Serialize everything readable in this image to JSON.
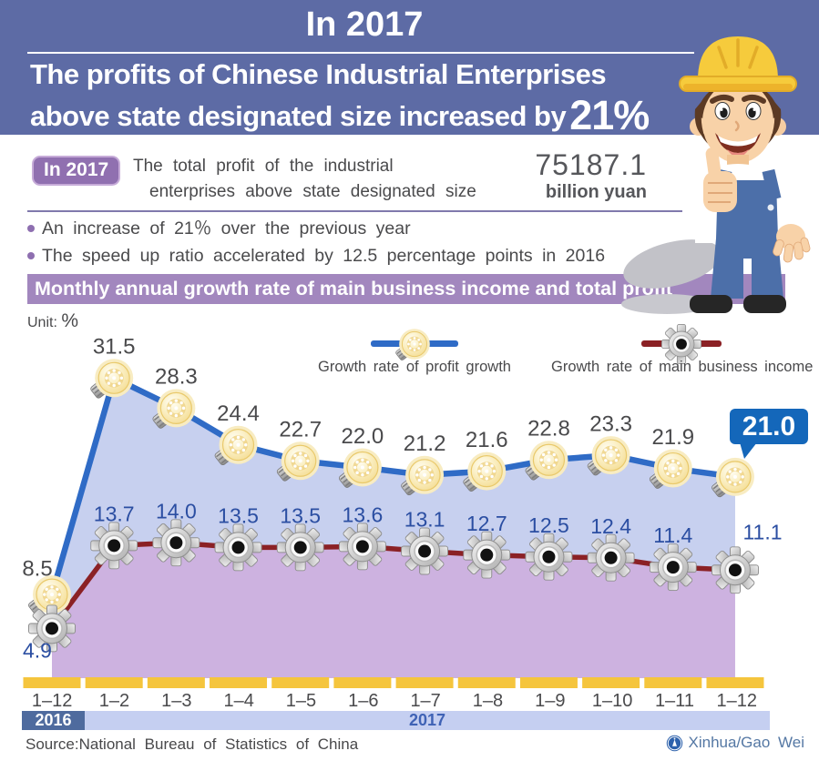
{
  "header": {
    "title": "In 2017",
    "line1": "The profits of Chinese Industrial Enterprises",
    "line2": "above state designated size increased by",
    "highlight": "21%"
  },
  "summary": {
    "badge": "In 2017",
    "text_line1": "The total profit of the industrial",
    "text_line2": "enterprises above state designated size",
    "amount": "75187.1",
    "amount_unit": "billion yuan",
    "bullets": [
      "An increase of 21％ over the previous year",
      "The speed up ratio accelerated by 12.5 percentage points in 2016"
    ]
  },
  "chart_header": {
    "banner": "Monthly annual growth rate of main business income and total profit",
    "unit_label": "Unit:",
    "unit_symbol": "%"
  },
  "legend": {
    "profit": "Growth rate of profit growth",
    "income": "Growth rate of main business income"
  },
  "chart_data": {
    "type": "line",
    "categories": [
      "1–12",
      "1–2",
      "1–3",
      "1–4",
      "1–5",
      "1–6",
      "1–7",
      "1–8",
      "1–9",
      "1–10",
      "1–11",
      "1–12"
    ],
    "series": [
      {
        "name": "Growth rate of profit growth",
        "marker": "bulb-icon",
        "color": "#2F6BC6",
        "values": [
          8.5,
          31.5,
          28.3,
          24.4,
          22.7,
          22.0,
          21.2,
          21.6,
          22.8,
          23.3,
          21.9,
          21.0
        ]
      },
      {
        "name": "Growth rate of main business income",
        "marker": "gear-icon",
        "color": "#8B2125",
        "values": [
          4.9,
          13.7,
          14.0,
          13.5,
          13.5,
          13.6,
          13.1,
          12.7,
          12.5,
          12.4,
          11.4,
          11.1
        ]
      }
    ],
    "highlight_value": "21.0",
    "era": [
      {
        "label": "2016",
        "span": 1
      },
      {
        "label": "2017",
        "span": 11
      }
    ],
    "ylabel": "%",
    "ylim": [
      0,
      35
    ],
    "grid": false,
    "legend_position": "top"
  },
  "footer": {
    "source": "Source:National Bureau of Statistics of China",
    "credit": "Xinhua/Gao Wei"
  },
  "colors": {
    "header_bg": "#5D6BA5",
    "badge_bg": "#9070B0",
    "banner_bg": "#A287BE",
    "profit_line": "#2F6BC6",
    "income_line": "#8B2125",
    "profit_fill": "#C7D0EF",
    "income_fill": "#CDB2E0",
    "axis_yellow": "#F5C53D",
    "era2016_bg": "#4F6B9E",
    "era2017_bg": "#C5CFF1",
    "callout_bg": "#1467BA",
    "income_label_text": "#2B4EA2",
    "profit_label_text": "#4A4A4C"
  }
}
